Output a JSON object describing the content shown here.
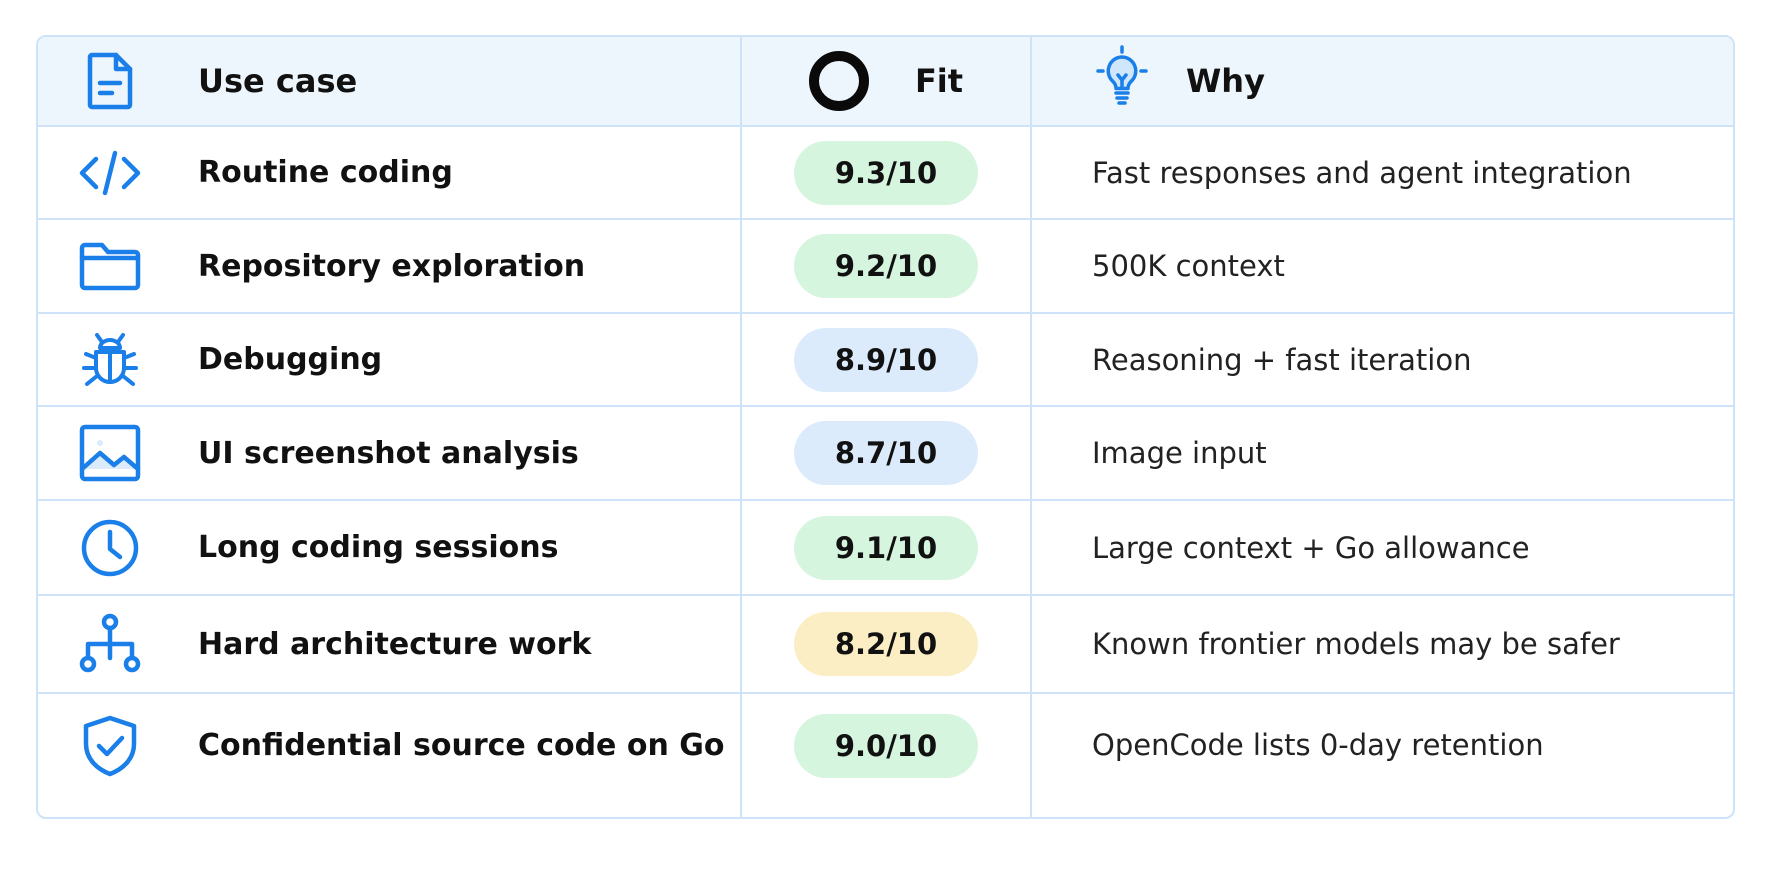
{
  "header": {
    "use_case": "Use case",
    "fit": "Fit",
    "why": "Why"
  },
  "colors": {
    "border": "#cfe3f8",
    "header_bg": "#eef6fd",
    "icon_blue": "#1a7fe8",
    "pill_green": "#d6f5df",
    "pill_blue": "#dcebfb",
    "pill_yellow": "#fbeec4"
  },
  "rows": [
    {
      "icon": "code-icon",
      "use_case": "Routine coding",
      "fit": "9.3/10",
      "fit_color": "green",
      "why": "Fast responses and agent integration"
    },
    {
      "icon": "folder-icon",
      "use_case": "Repository exploration",
      "fit": "9.2/10",
      "fit_color": "green",
      "why": "500K context"
    },
    {
      "icon": "bug-icon",
      "use_case": "Debugging",
      "fit": "8.9/10",
      "fit_color": "blue",
      "why": "Reasoning + fast iteration"
    },
    {
      "icon": "image-icon",
      "use_case": "UI screenshot analysis",
      "fit": "8.7/10",
      "fit_color": "blue",
      "why": "Image input"
    },
    {
      "icon": "clock-icon",
      "use_case": "Long coding sessions",
      "fit": "9.1/10",
      "fit_color": "green",
      "why": "Large context + Go allowance"
    },
    {
      "icon": "hierarchy-icon",
      "use_case": "Hard architecture work",
      "fit": "8.2/10",
      "fit_color": "yellow",
      "why": "Known frontier models may be safer"
    },
    {
      "icon": "shield-check-icon",
      "use_case": "Confidential source code on Go",
      "fit": "9.0/10",
      "fit_color": "green",
      "why": "OpenCode lists 0-day retention"
    }
  ]
}
